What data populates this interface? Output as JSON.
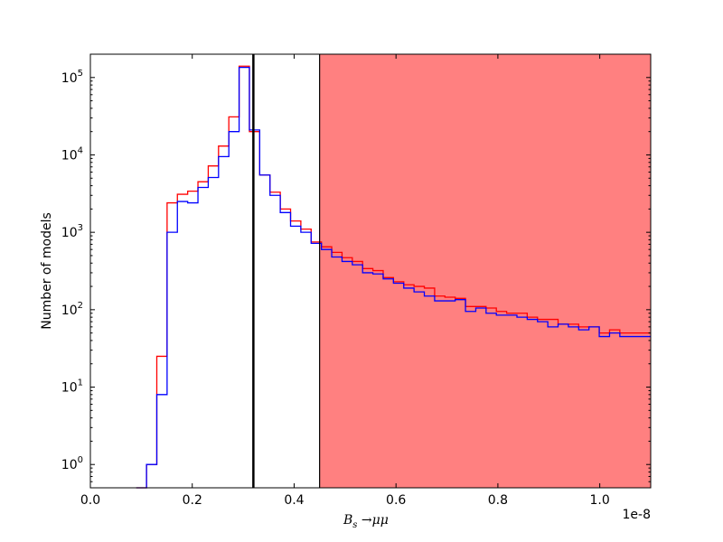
{
  "chart_data": {
    "type": "histogram",
    "xlabel": "B_s→μμ",
    "xlabel_parts": {
      "base": "B",
      "sub": "s",
      "rest": " →μμ"
    },
    "ylabel": "Number of models",
    "x_scale_note": "1e-8",
    "x_scale_factor": 1e-08,
    "xlim": [
      0.0,
      1.1
    ],
    "ylim": [
      0.5,
      200000
    ],
    "y_scale": "log",
    "x_ticks": [
      0.0,
      0.2,
      0.4,
      0.6,
      0.8,
      1.0
    ],
    "x_tick_labels": [
      "0.0",
      "0.2",
      "0.4",
      "0.6",
      "0.8",
      "1.0"
    ],
    "y_ticks": [
      1,
      10,
      100,
      1000,
      10000,
      100000
    ],
    "y_tick_labels": [
      {
        "base": "10",
        "exp": "0"
      },
      {
        "base": "10",
        "exp": "1"
      },
      {
        "base": "10",
        "exp": "2"
      },
      {
        "base": "10",
        "exp": "3"
      },
      {
        "base": "10",
        "exp": "4"
      },
      {
        "base": "10",
        "exp": "5"
      }
    ],
    "bin_edges": [
      0.09,
      0.1102,
      0.1304,
      0.1506,
      0.1708,
      0.191,
      0.2112,
      0.2314,
      0.2516,
      0.2718,
      0.292,
      0.3122,
      0.3324,
      0.3526,
      0.3728,
      0.393,
      0.4132,
      0.4334,
      0.4536,
      0.4738,
      0.494,
      0.5142,
      0.5344,
      0.5546,
      0.5748,
      0.595,
      0.6152,
      0.6354,
      0.6556,
      0.6758,
      0.696,
      0.7162,
      0.7364,
      0.7566,
      0.7768,
      0.797,
      0.8172,
      0.8374,
      0.8576,
      0.8778,
      0.898,
      0.9182,
      0.9384,
      0.9586,
      0.9788,
      0.999,
      1.0192,
      1.0394,
      1.0596,
      1.0798,
      1.1
    ],
    "series": [
      {
        "color": "#ff0000",
        "values": [
          0.5,
          1.0,
          25,
          2400,
          3100,
          3400,
          4500,
          7200,
          13000,
          31000,
          140000,
          20000,
          5500,
          3300,
          2000,
          1400,
          1100,
          750,
          650,
          550,
          470,
          420,
          340,
          320,
          260,
          230,
          210,
          200,
          190,
          150,
          145,
          140,
          110,
          110,
          105,
          95,
          90,
          90,
          80,
          75,
          75,
          65,
          65,
          60,
          60,
          50,
          55,
          50,
          50,
          50
        ]
      },
      {
        "color": "#0000ff",
        "values": [
          0.5,
          1.0,
          8,
          1000,
          2500,
          2400,
          3800,
          5100,
          9500,
          20000,
          135000,
          21000,
          5500,
          3000,
          1800,
          1200,
          1000,
          720,
          600,
          480,
          420,
          380,
          300,
          290,
          250,
          220,
          190,
          170,
          150,
          130,
          130,
          135,
          95,
          105,
          90,
          85,
          85,
          80,
          75,
          70,
          60,
          65,
          60,
          55,
          60,
          45,
          50,
          45,
          45,
          45
        ]
      }
    ],
    "vertical_lines": [
      {
        "x": 0.32,
        "color": "#000000"
      },
      {
        "x": 0.45,
        "color": "#000000"
      }
    ],
    "shaded_region": {
      "x0": 0.45,
      "x1": 1.1,
      "color": "#ff8080"
    }
  }
}
